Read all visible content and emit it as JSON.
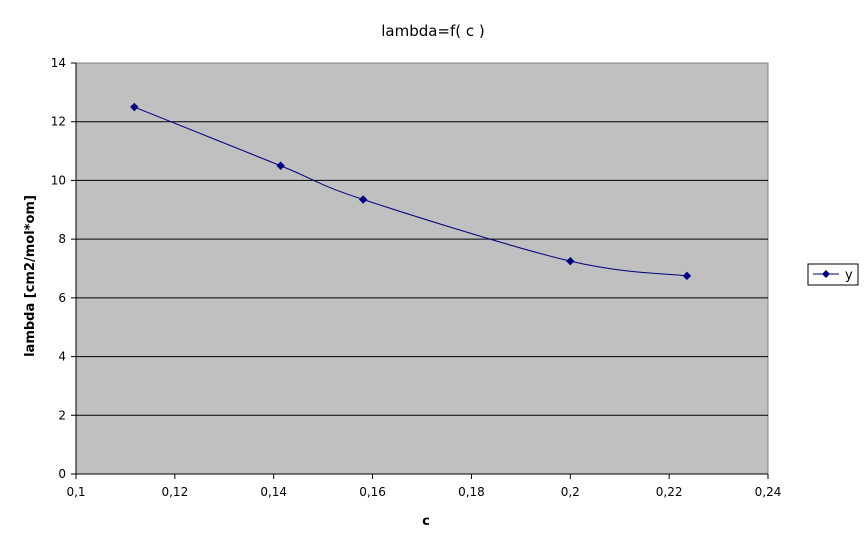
{
  "chart_data": {
    "type": "line",
    "title": "lambda=f( c )",
    "xlabel": "c",
    "ylabel": "lambda [cm2/mol*om]",
    "xlim": [
      0.1,
      0.24
    ],
    "ylim": [
      0,
      14
    ],
    "x_ticks": [
      "0,1",
      "0,12",
      "0,14",
      "0,16",
      "0,18",
      "0,2",
      "0,22",
      "0,24"
    ],
    "y_ticks": [
      "0",
      "2",
      "4",
      "6",
      "8",
      "10",
      "12",
      "14"
    ],
    "grid": "horizontal",
    "legend_position": "right",
    "series": [
      {
        "name": "y",
        "color": "#000080",
        "marker": "diamond",
        "x": [
          0.1118,
          0.1414,
          0.1581,
          0.2,
          0.2236
        ],
        "y": [
          12.5,
          10.5,
          9.35,
          7.25,
          6.75
        ]
      }
    ],
    "plot_background": "#c0c0c0"
  }
}
